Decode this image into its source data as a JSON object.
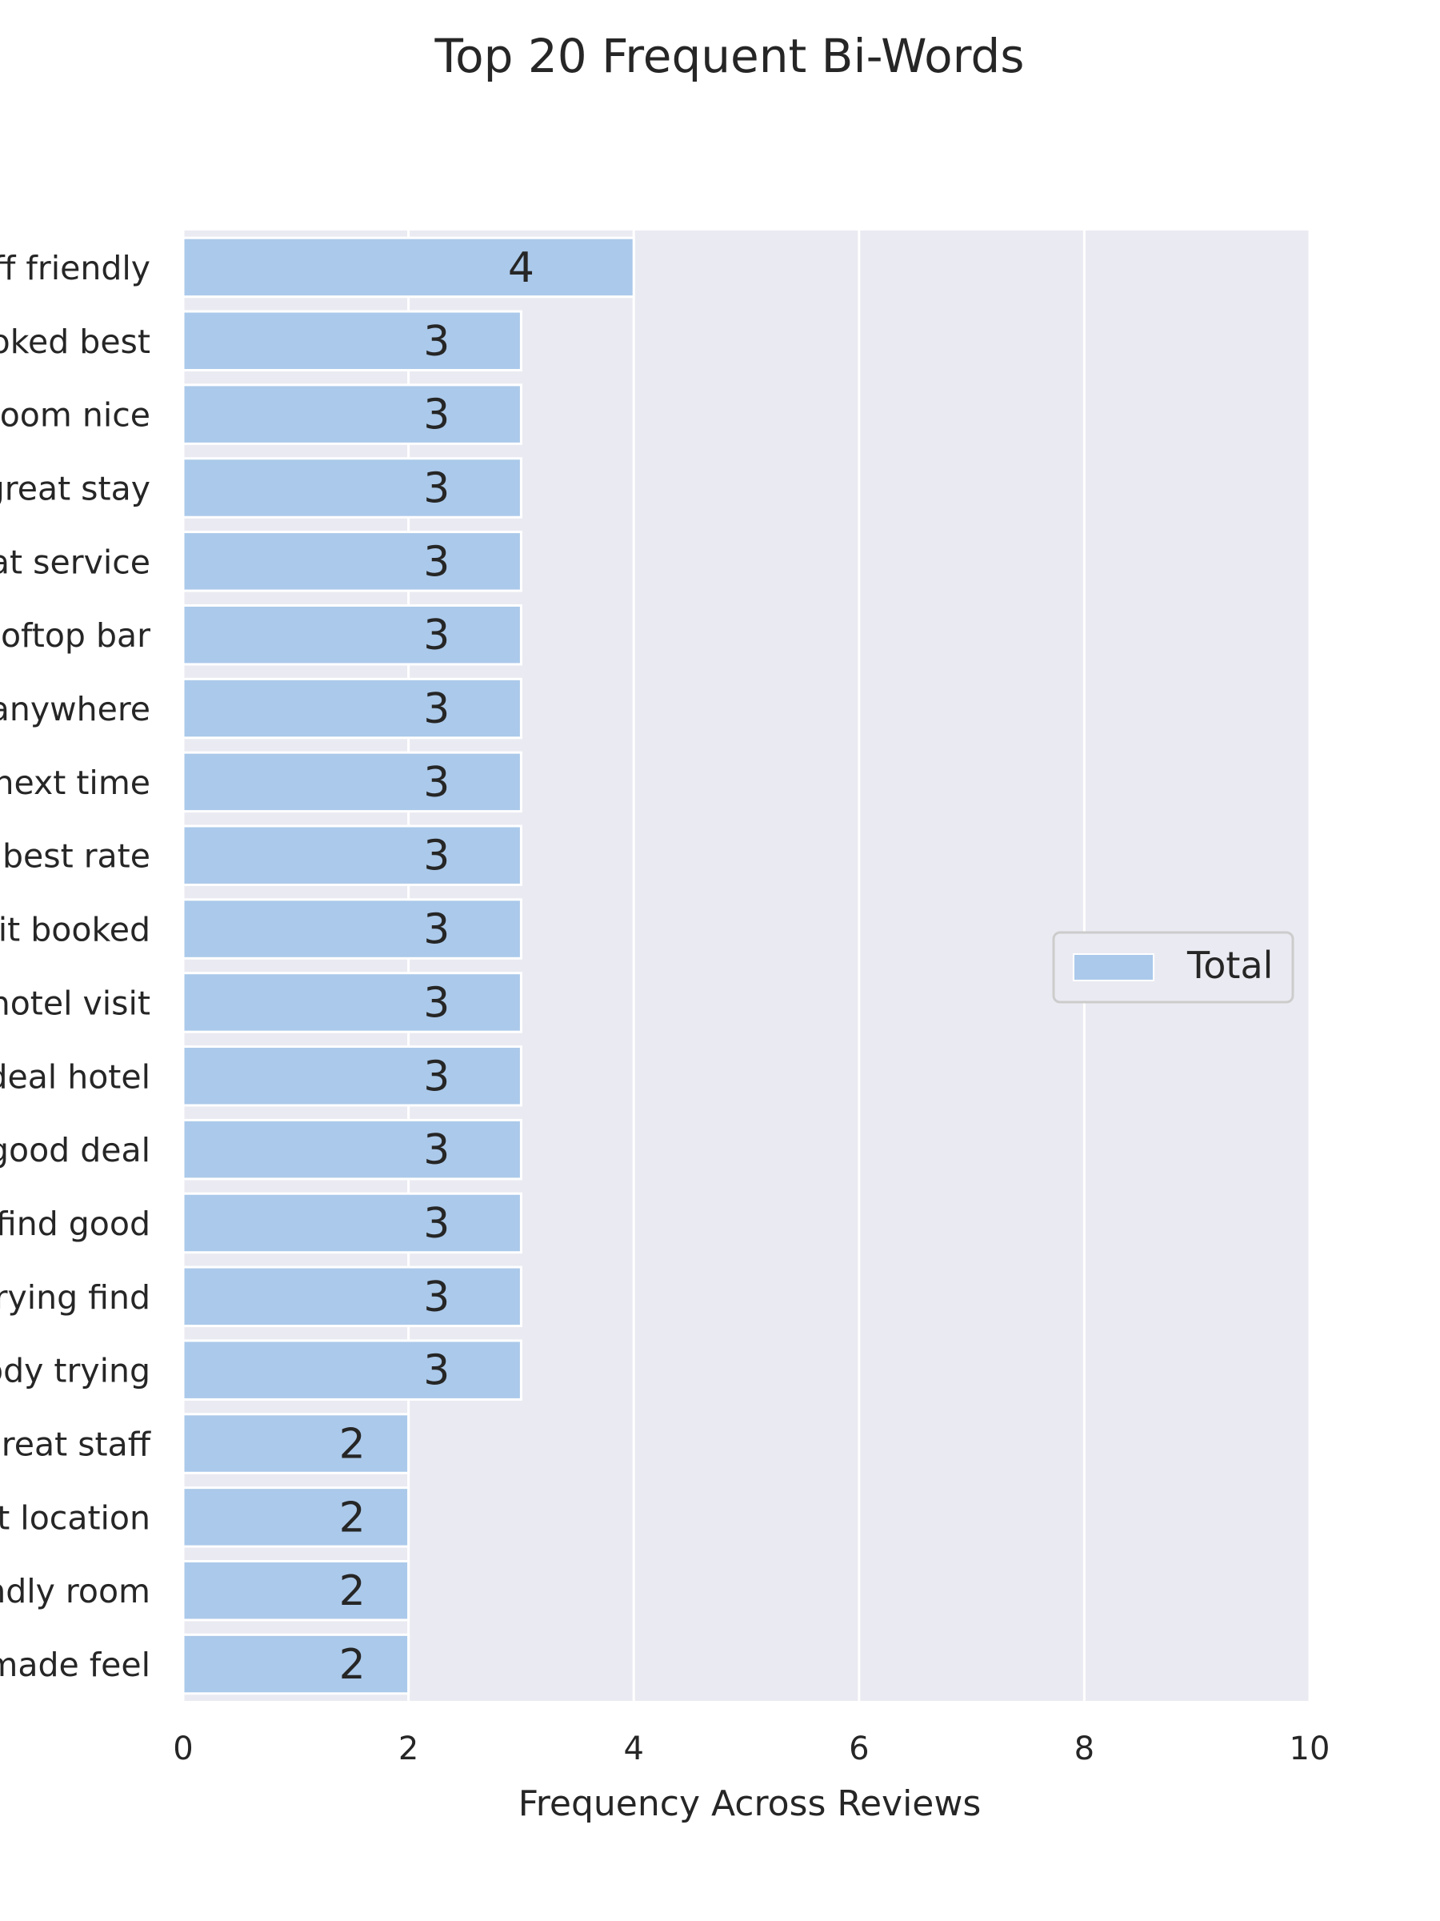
{
  "chart_data": {
    "type": "bar",
    "orientation": "horizontal",
    "title": "Top 20 Frequent Bi-Words",
    "xlabel": "Frequency Across Reviews",
    "ylabel": "",
    "xlim": [
      0,
      10
    ],
    "xticks": [
      "0",
      "2",
      "4",
      "6",
      "8",
      "10"
    ],
    "grid": true,
    "legend": {
      "entries": [
        "Total"
      ],
      "placement": "center-right"
    },
    "categories": [
      "ff friendly",
      "oked best",
      "oom nice",
      "great stay",
      "at service",
      "ooftop bar",
      "anywhere",
      "next time",
      "best rate",
      "it booked",
      "hotel visit",
      "deal hotel",
      "good deal",
      "find good",
      "rying find",
      "ody trying",
      "great staff",
      "t location",
      "ndly room",
      "made feel"
    ],
    "series": [
      {
        "name": "Total",
        "values": [
          4,
          3,
          3,
          3,
          3,
          3,
          3,
          3,
          3,
          3,
          3,
          3,
          3,
          3,
          3,
          3,
          2,
          2,
          2,
          2
        ],
        "labels": [
          "4",
          "3",
          "3",
          "3",
          "3",
          "3",
          "3",
          "3",
          "3",
          "3",
          "3",
          "3",
          "3",
          "3",
          "3",
          "3",
          "2",
          "2",
          "2",
          "2"
        ]
      }
    ]
  },
  "colors": {
    "background": "#ffffff",
    "plot_background": "#eaeaf2",
    "grid": "#ffffff",
    "bar": "#abc9ea",
    "text": "#262626",
    "legend_border": "#cccccc",
    "legend_fill": "#eaeaf2"
  }
}
